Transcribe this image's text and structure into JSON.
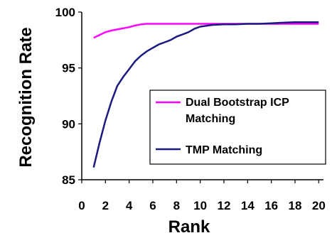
{
  "chart_data": {
    "type": "line",
    "title": "",
    "xlabel": "Rank",
    "ylabel": "Recognition Rate",
    "xlim": [
      0,
      20.4
    ],
    "ylim": [
      85,
      100
    ],
    "xticks": [
      0,
      2,
      4,
      6,
      8,
      10,
      12,
      14,
      16,
      18,
      20
    ],
    "yticks": [
      85,
      90,
      95,
      100
    ],
    "grid": false,
    "legend_position": "center-right",
    "series": [
      {
        "name": "Dual Bootstrap ICP Matching",
        "color": "#ff00ff",
        "x": [
          1,
          1.5,
          2,
          2.5,
          3,
          3.5,
          4,
          4.5,
          5,
          5.5,
          6,
          7,
          8,
          9,
          10,
          11,
          12,
          13,
          14,
          15,
          16,
          17,
          18,
          19,
          20
        ],
        "y": [
          97.7,
          97.95,
          98.2,
          98.35,
          98.45,
          98.55,
          98.65,
          98.8,
          98.9,
          98.95,
          98.95,
          98.95,
          98.95,
          98.95,
          98.95,
          98.95,
          98.95,
          98.95,
          98.95,
          98.95,
          98.95,
          98.95,
          98.95,
          98.95,
          98.95
        ]
      },
      {
        "name": "TMP Matching",
        "color": "#1a1a80",
        "x": [
          1,
          1.5,
          2,
          2.5,
          3,
          3.5,
          4,
          4.5,
          5,
          5.5,
          6,
          6.5,
          7,
          7.5,
          8,
          8.5,
          9,
          9.5,
          10,
          11,
          12,
          13,
          14,
          15,
          16,
          17,
          18,
          19,
          20
        ],
        "y": [
          86.1,
          88.3,
          90.3,
          92.0,
          93.4,
          94.2,
          94.9,
          95.6,
          96.1,
          96.5,
          96.8,
          97.1,
          97.3,
          97.5,
          97.8,
          98.0,
          98.2,
          98.5,
          98.7,
          98.85,
          98.9,
          98.9,
          98.95,
          98.95,
          99.0,
          99.05,
          99.1,
          99.1,
          99.1
        ]
      }
    ]
  }
}
